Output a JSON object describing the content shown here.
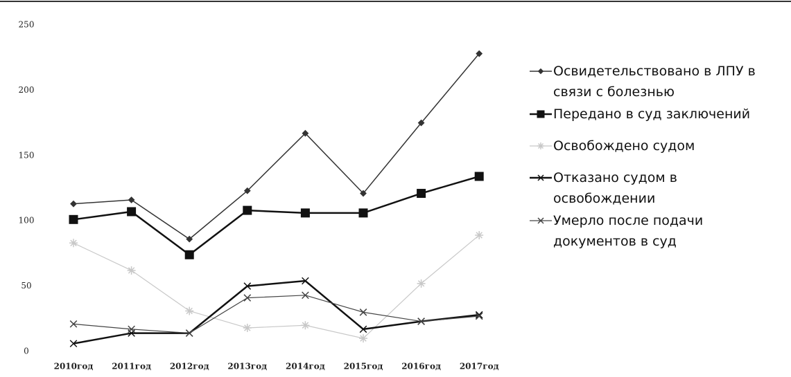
{
  "chart_data": {
    "type": "line",
    "categories": [
      "2010год",
      "2011год",
      "2012год",
      "2013год",
      "2014год",
      "2015год",
      "2016год",
      "2017год"
    ],
    "series": [
      {
        "name": "Освидетельствовано в ЛПУ в связи с болезнью",
        "color": "#333333",
        "width": 1.5,
        "marker": "diamond",
        "values": [
          113,
          116,
          86,
          123,
          167,
          121,
          175,
          228
        ]
      },
      {
        "name": "Передано в суд заключений",
        "color": "#111111",
        "width": 2.5,
        "marker": "square",
        "values": [
          101,
          107,
          74,
          108,
          106,
          106,
          121,
          134
        ]
      },
      {
        "name": "Освобождено судом",
        "color": "#c8c8c8",
        "width": 1.2,
        "marker": "star",
        "values": [
          83,
          62,
          31,
          18,
          20,
          10,
          52,
          89
        ]
      },
      {
        "name": "Отказано судом в освобождении",
        "color": "#111111",
        "width": 2.5,
        "marker": "x",
        "values": [
          6,
          14,
          14,
          50,
          54,
          17,
          23,
          28
        ]
      },
      {
        "name": "Умерло после подачи документов в суд",
        "color": "#444444",
        "width": 1.2,
        "marker": "x",
        "values": [
          21,
          17,
          14,
          41,
          43,
          30,
          23,
          27
        ]
      }
    ],
    "ylim": [
      0,
      250
    ],
    "yticks": [
      0,
      50,
      100,
      150,
      200,
      250
    ],
    "grid": false,
    "legend": "right"
  }
}
